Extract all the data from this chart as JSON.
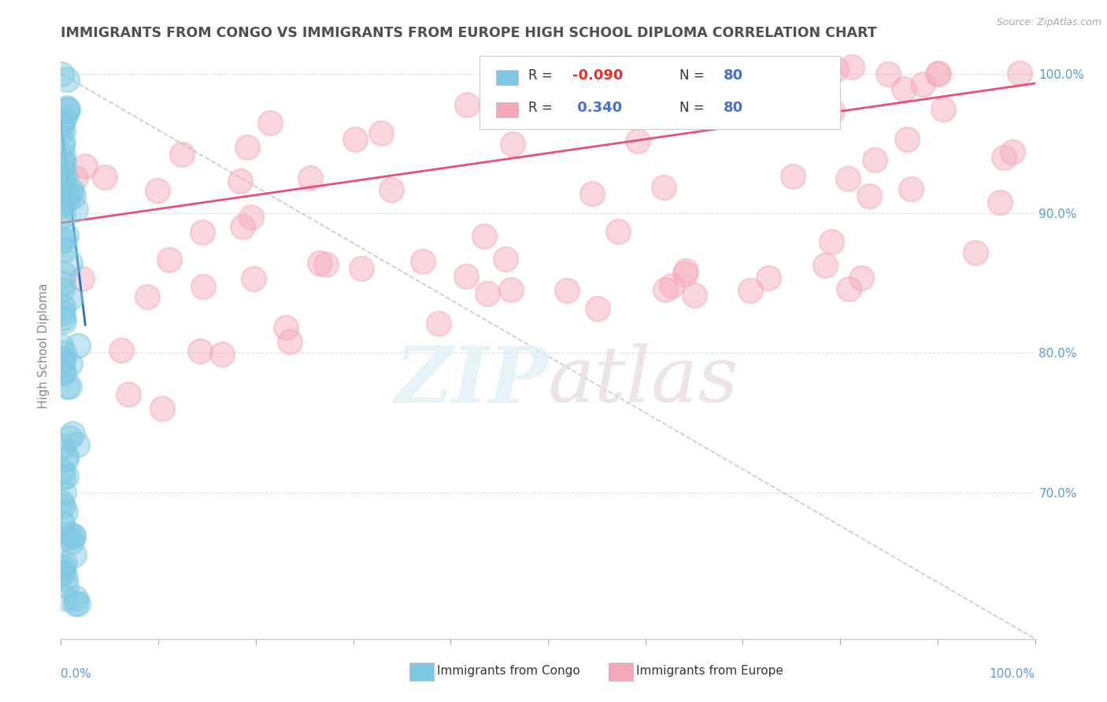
{
  "title": "IMMIGRANTS FROM CONGO VS IMMIGRANTS FROM EUROPE HIGH SCHOOL DIPLOMA CORRELATION CHART",
  "source_text": "Source: ZipAtlas.com",
  "ylabel": "High School Diploma",
  "color_congo": "#7ec8e3",
  "color_europe": "#f4a7b9",
  "color_trend_congo": "#3070b0",
  "color_trend_europe": "#e8507a",
  "color_ref_line": "#c8c8c8",
  "watermark_color": "#dde8f0",
  "background_color": "#ffffff",
  "title_color": "#505050",
  "axis_color": "#5b9bd5",
  "legend_r_congo": "-0.090",
  "legend_n_congo": "80",
  "legend_r_europe": "0.340",
  "legend_n_europe": "80",
  "right_yticks": [
    0.65,
    0.7,
    0.75,
    0.8,
    0.85,
    0.9,
    0.95,
    1.0
  ],
  "right_yticklabels": [
    "",
    "70.0%",
    "",
    "80.0%",
    "",
    "90.0%",
    "",
    "100.0%"
  ],
  "xlim": [
    0.0,
    1.0
  ],
  "ylim": [
    0.595,
    1.015
  ]
}
